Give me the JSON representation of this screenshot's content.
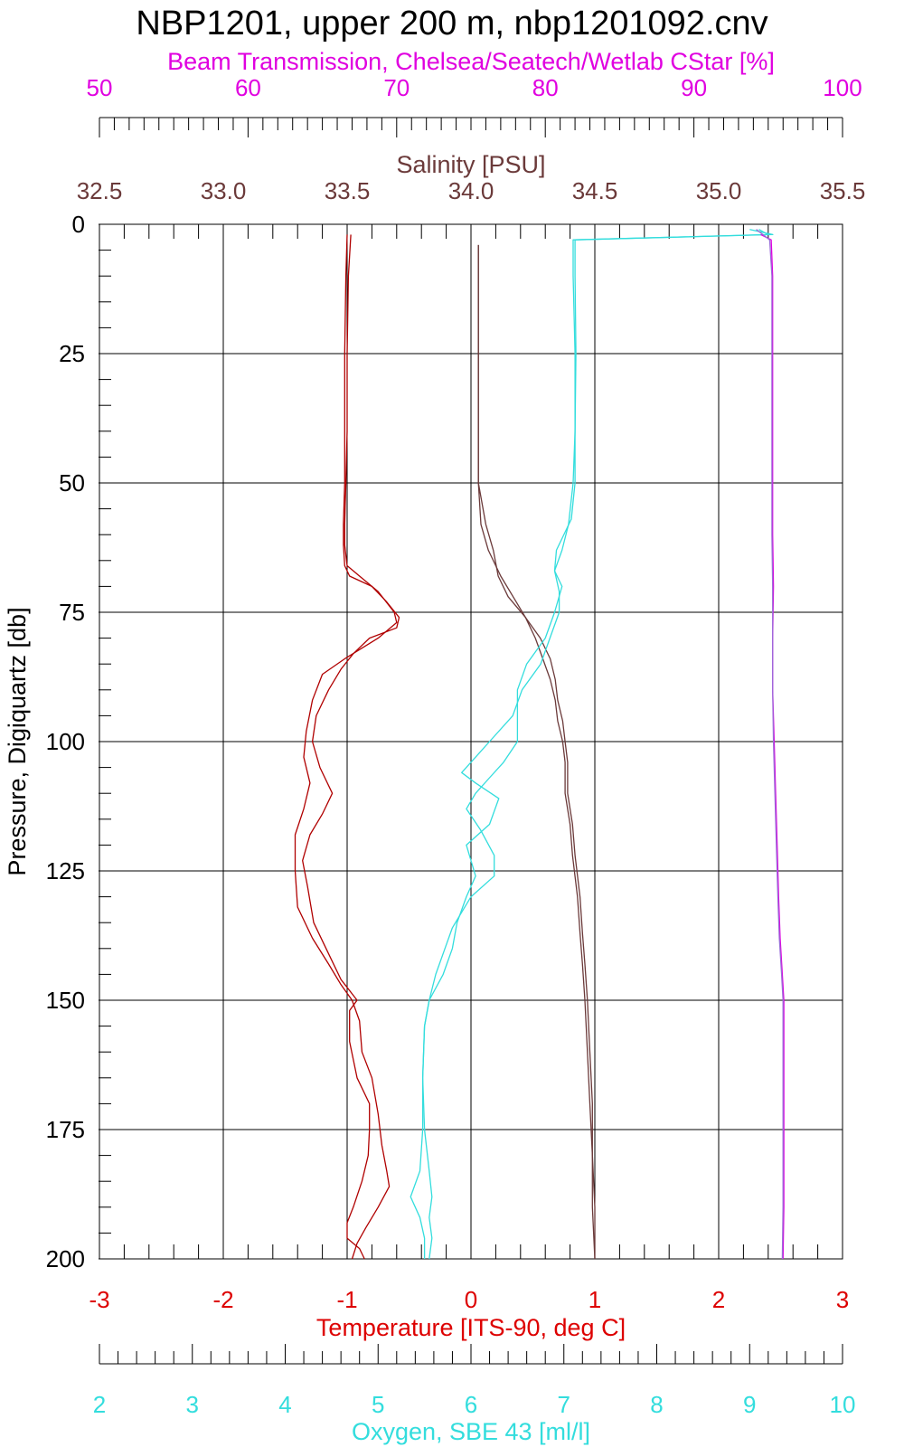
{
  "chart_data": {
    "type": "line",
    "title": "NBP1201, upper 200 m, nbp1201092.cnv",
    "y_axis": {
      "label": "Pressure, Digiquartz [db]",
      "range": [
        0,
        200
      ],
      "ticks": [
        "0",
        "25",
        "50",
        "75",
        "100",
        "125",
        "150",
        "175",
        "200"
      ],
      "inverted": true
    },
    "x_axes": [
      {
        "id": "beam",
        "label": "Beam Transmission, Chelsea/Seatech/Wetlab CStar [%]",
        "position": "top-outer",
        "range": [
          50,
          100
        ],
        "ticks": [
          "50",
          "60",
          "70",
          "80",
          "90",
          "100"
        ],
        "color": "#e000e0"
      },
      {
        "id": "salinity",
        "label": "Salinity [PSU]",
        "position": "top",
        "range": [
          32.5,
          35.5
        ],
        "ticks": [
          "32.5",
          "33.0",
          "33.5",
          "34.0",
          "34.5",
          "35.0",
          "35.5"
        ],
        "color": "#6b3a3a"
      },
      {
        "id": "temperature",
        "label": "Temperature [ITS-90, deg C]",
        "position": "bottom",
        "range": [
          -3,
          3
        ],
        "ticks": [
          "-3",
          "-2",
          "-1",
          "0",
          "1",
          "2",
          "3"
        ],
        "color": "#dd0000"
      },
      {
        "id": "oxygen",
        "label": "Oxygen, SBE 43 [ml/l]",
        "position": "bottom-outer",
        "range": [
          2,
          10
        ],
        "ticks": [
          "2",
          "3",
          "4",
          "5",
          "6",
          "7",
          "8",
          "9",
          "10"
        ],
        "color": "#33dddd"
      }
    ],
    "grid": true,
    "series": [
      {
        "axis": "temperature",
        "color": "#b00000",
        "points": [
          [
            -0.97,
            2
          ],
          [
            -0.99,
            10
          ],
          [
            -1.0,
            25
          ],
          [
            -1.0,
            40
          ],
          [
            -1.01,
            50
          ],
          [
            -1.02,
            58
          ],
          [
            -1.02,
            62
          ],
          [
            -1.0,
            66
          ],
          [
            -0.9,
            68
          ],
          [
            -0.75,
            71
          ],
          [
            -0.62,
            75
          ],
          [
            -0.6,
            77
          ],
          [
            -0.75,
            80
          ],
          [
            -1.02,
            84
          ],
          [
            -1.2,
            87
          ],
          [
            -1.28,
            92
          ],
          [
            -1.33,
            98
          ],
          [
            -1.35,
            103
          ],
          [
            -1.3,
            108
          ],
          [
            -1.35,
            113
          ],
          [
            -1.42,
            118
          ],
          [
            -1.42,
            125
          ],
          [
            -1.4,
            132
          ],
          [
            -1.28,
            138
          ],
          [
            -1.15,
            143
          ],
          [
            -1.05,
            147
          ],
          [
            -0.96,
            150
          ],
          [
            -0.9,
            154
          ],
          [
            -0.88,
            160
          ],
          [
            -0.8,
            165
          ],
          [
            -0.75,
            172
          ],
          [
            -0.72,
            178
          ],
          [
            -0.68,
            183
          ],
          [
            -0.66,
            186
          ],
          [
            -0.75,
            190
          ],
          [
            -0.85,
            194
          ],
          [
            -0.92,
            197
          ],
          [
            -0.96,
            200
          ]
        ]
      },
      {
        "axis": "temperature",
        "color": "#b00000",
        "points": [
          [
            -1.0,
            2
          ],
          [
            -1.01,
            10
          ],
          [
            -1.02,
            25
          ],
          [
            -1.02,
            40
          ],
          [
            -1.02,
            50
          ],
          [
            -1.03,
            58
          ],
          [
            -1.03,
            62
          ],
          [
            -1.02,
            66
          ],
          [
            -0.98,
            68
          ],
          [
            -0.8,
            70
          ],
          [
            -0.68,
            73
          ],
          [
            -0.58,
            76
          ],
          [
            -0.6,
            78
          ],
          [
            -0.82,
            80
          ],
          [
            -0.95,
            83
          ],
          [
            -1.05,
            86
          ],
          [
            -1.15,
            90
          ],
          [
            -1.25,
            95
          ],
          [
            -1.28,
            100
          ],
          [
            -1.22,
            105
          ],
          [
            -1.12,
            110
          ],
          [
            -1.2,
            114
          ],
          [
            -1.3,
            118
          ],
          [
            -1.36,
            123
          ],
          [
            -1.32,
            128
          ],
          [
            -1.27,
            135
          ],
          [
            -1.17,
            140
          ],
          [
            -1.05,
            146
          ],
          [
            -0.92,
            150
          ],
          [
            -0.98,
            152
          ],
          [
            -0.98,
            158
          ],
          [
            -0.92,
            165
          ],
          [
            -0.82,
            170
          ],
          [
            -0.82,
            175
          ],
          [
            -0.83,
            180
          ],
          [
            -0.88,
            185
          ],
          [
            -0.95,
            190
          ],
          [
            -1.0,
            193
          ],
          [
            -1.0,
            196
          ],
          [
            -0.9,
            198
          ],
          [
            -0.86,
            200
          ]
        ]
      },
      {
        "axis": "salinity",
        "color": "#6b3a3a",
        "points": [
          [
            34.03,
            4
          ],
          [
            34.03,
            10
          ],
          [
            34.03,
            25
          ],
          [
            34.03,
            40
          ],
          [
            34.03,
            50
          ],
          [
            34.06,
            58
          ],
          [
            34.09,
            63
          ],
          [
            34.11,
            68
          ],
          [
            34.15,
            72
          ],
          [
            34.22,
            76
          ],
          [
            34.28,
            80
          ],
          [
            34.32,
            84
          ],
          [
            34.34,
            88
          ],
          [
            34.35,
            92
          ],
          [
            34.37,
            96
          ],
          [
            34.38,
            100
          ],
          [
            34.39,
            104
          ],
          [
            34.39,
            110
          ],
          [
            34.41,
            116
          ],
          [
            34.42,
            122
          ],
          [
            34.44,
            130
          ],
          [
            34.45,
            137
          ],
          [
            34.46,
            143
          ],
          [
            34.47,
            150
          ],
          [
            34.48,
            160
          ],
          [
            34.49,
            170
          ],
          [
            34.49,
            180
          ],
          [
            34.5,
            190
          ],
          [
            34.5,
            200
          ]
        ]
      },
      {
        "axis": "salinity",
        "color": "#6b3a3a",
        "points": [
          [
            34.03,
            4
          ],
          [
            34.03,
            10
          ],
          [
            34.03,
            25
          ],
          [
            34.03,
            40
          ],
          [
            34.03,
            50
          ],
          [
            34.04,
            58
          ],
          [
            34.07,
            63
          ],
          [
            34.12,
            68
          ],
          [
            34.17,
            72
          ],
          [
            34.22,
            76
          ],
          [
            34.26,
            80
          ],
          [
            34.29,
            84
          ],
          [
            34.32,
            88
          ],
          [
            34.34,
            92
          ],
          [
            34.35,
            96
          ],
          [
            34.37,
            100
          ],
          [
            34.38,
            104
          ],
          [
            34.38,
            110
          ],
          [
            34.4,
            116
          ],
          [
            34.41,
            122
          ],
          [
            34.43,
            130
          ],
          [
            34.44,
            137
          ],
          [
            34.45,
            143
          ],
          [
            34.46,
            150
          ],
          [
            34.47,
            160
          ],
          [
            34.48,
            170
          ],
          [
            34.49,
            180
          ],
          [
            34.49,
            190
          ],
          [
            34.5,
            200
          ]
        ]
      },
      {
        "axis": "oxygen",
        "color": "#33dddd",
        "points": [
          [
            9.0,
            1
          ],
          [
            9.25,
            2
          ],
          [
            7.12,
            3
          ],
          [
            7.12,
            10
          ],
          [
            7.13,
            25
          ],
          [
            7.12,
            40
          ],
          [
            7.1,
            50
          ],
          [
            7.05,
            58
          ],
          [
            6.98,
            63
          ],
          [
            6.9,
            67
          ],
          [
            6.95,
            71
          ],
          [
            6.95,
            75
          ],
          [
            6.85,
            80
          ],
          [
            6.75,
            85
          ],
          [
            6.55,
            90
          ],
          [
            6.45,
            95
          ],
          [
            6.2,
            100
          ],
          [
            6.05,
            103
          ],
          [
            5.9,
            106
          ],
          [
            6.05,
            108
          ],
          [
            6.3,
            111
          ],
          [
            6.2,
            116
          ],
          [
            5.95,
            120
          ],
          [
            6.0,
            123
          ],
          [
            6.05,
            126
          ],
          [
            5.95,
            130
          ],
          [
            5.85,
            135
          ],
          [
            5.8,
            140
          ],
          [
            5.7,
            145
          ],
          [
            5.55,
            150
          ],
          [
            5.5,
            155
          ],
          [
            5.48,
            165
          ],
          [
            5.48,
            175
          ],
          [
            5.45,
            183
          ],
          [
            5.35,
            188
          ],
          [
            5.45,
            192
          ],
          [
            5.5,
            196
          ],
          [
            5.5,
            200
          ]
        ]
      },
      {
        "axis": "oxygen",
        "color": "#33dddd",
        "points": [
          [
            9.1,
            1
          ],
          [
            9.2,
            2
          ],
          [
            7.1,
            3
          ],
          [
            7.1,
            10
          ],
          [
            7.12,
            25
          ],
          [
            7.12,
            40
          ],
          [
            7.12,
            50
          ],
          [
            7.08,
            57
          ],
          [
            6.92,
            63
          ],
          [
            6.9,
            67
          ],
          [
            6.98,
            70
          ],
          [
            6.9,
            75
          ],
          [
            6.8,
            80
          ],
          [
            6.6,
            85
          ],
          [
            6.5,
            90
          ],
          [
            6.5,
            95
          ],
          [
            6.5,
            100
          ],
          [
            6.35,
            104
          ],
          [
            6.2,
            107
          ],
          [
            6.05,
            110
          ],
          [
            5.95,
            113
          ],
          [
            6.1,
            117
          ],
          [
            6.25,
            122
          ],
          [
            6.25,
            126
          ],
          [
            6.0,
            130
          ],
          [
            5.8,
            136
          ],
          [
            5.72,
            140
          ],
          [
            5.62,
            145
          ],
          [
            5.55,
            150
          ],
          [
            5.5,
            155
          ],
          [
            5.48,
            165
          ],
          [
            5.5,
            175
          ],
          [
            5.55,
            183
          ],
          [
            5.58,
            188
          ],
          [
            5.55,
            192
          ],
          [
            5.58,
            196
          ],
          [
            5.55,
            200
          ]
        ]
      },
      {
        "axis": "beam",
        "color": "#e000e0",
        "points": [
          [
            94.5,
            2
          ],
          [
            95.2,
            3
          ],
          [
            95.3,
            10
          ],
          [
            95.3,
            25
          ],
          [
            95.3,
            40
          ],
          [
            95.3,
            50
          ],
          [
            95.3,
            60
          ],
          [
            95.35,
            70
          ],
          [
            95.3,
            80
          ],
          [
            95.3,
            90
          ],
          [
            95.4,
            100
          ],
          [
            95.5,
            110
          ],
          [
            95.6,
            120
          ],
          [
            95.7,
            130
          ],
          [
            95.8,
            138
          ],
          [
            95.95,
            145
          ],
          [
            96.05,
            150
          ],
          [
            96.05,
            160
          ],
          [
            96.05,
            175
          ],
          [
            96.05,
            190
          ],
          [
            96.0,
            200
          ]
        ]
      },
      {
        "axis": "beam",
        "color": "#9b6bd9",
        "points": [
          [
            94.2,
            1
          ],
          [
            95.1,
            3
          ],
          [
            95.25,
            10
          ],
          [
            95.25,
            25
          ],
          [
            95.25,
            40
          ],
          [
            95.25,
            50
          ],
          [
            95.25,
            60
          ],
          [
            95.3,
            70
          ],
          [
            95.3,
            80
          ],
          [
            95.3,
            90
          ],
          [
            95.35,
            100
          ],
          [
            95.45,
            110
          ],
          [
            95.55,
            120
          ],
          [
            95.65,
            130
          ],
          [
            95.75,
            138
          ],
          [
            95.9,
            145
          ],
          [
            96.0,
            150
          ],
          [
            96.0,
            160
          ],
          [
            96.0,
            175
          ],
          [
            96.0,
            190
          ],
          [
            95.95,
            200
          ]
        ]
      }
    ]
  }
}
